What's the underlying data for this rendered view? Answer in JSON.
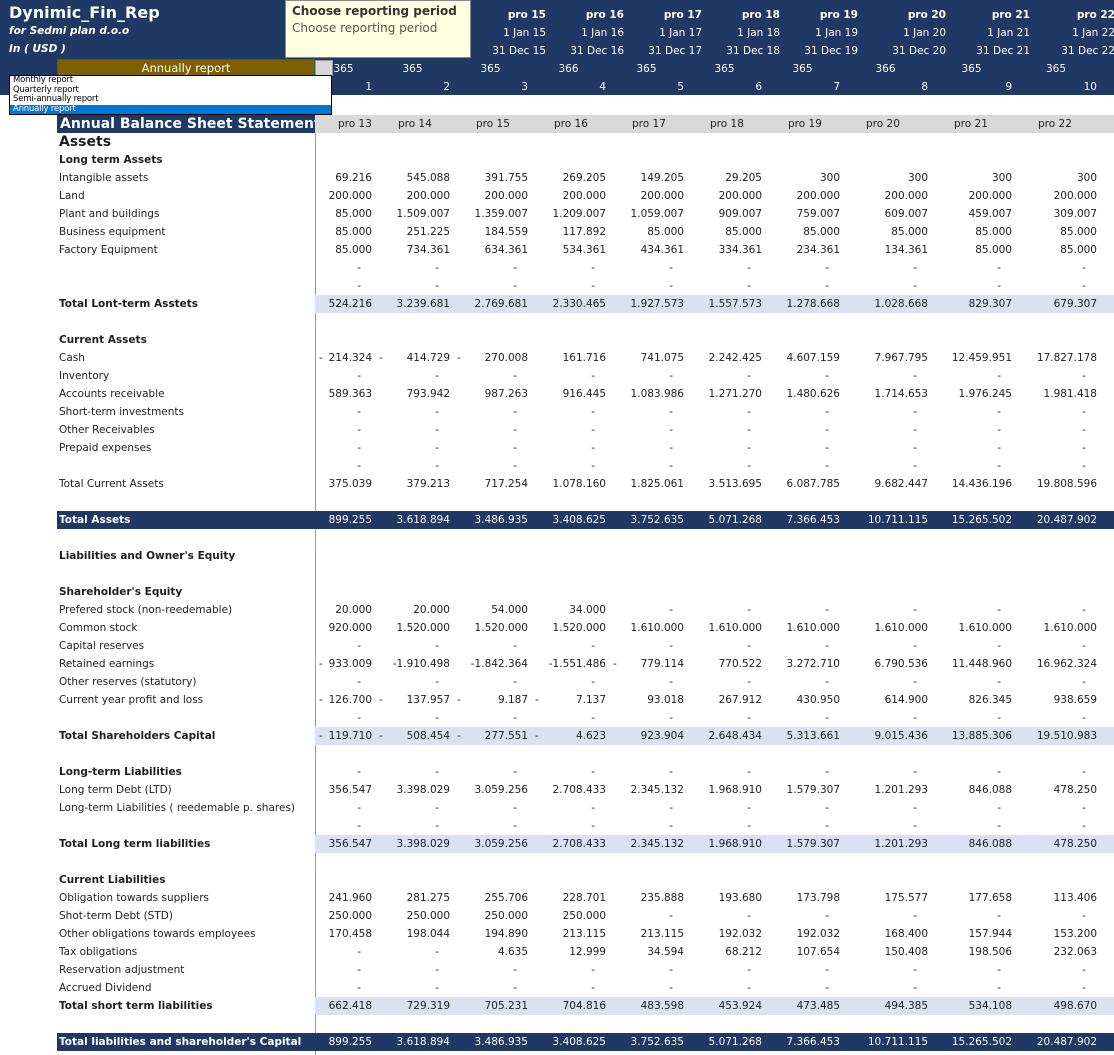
{
  "header": {
    "title": "Dynimic_Fin_Rep",
    "company": "for Sedmi plan d.o.o",
    "currency": "In ( USD )",
    "periods": [
      "pro 13",
      "pro 14",
      "pro 15",
      "pro 16",
      "pro 17",
      "pro 18",
      "pro 19",
      "pro 20",
      "pro 21",
      "pro 22"
    ],
    "start_dates": [
      "",
      "",
      "1 Jan 15",
      "1 Jan 16",
      "1 Jan 17",
      "1 Jan 18",
      "1 Jan 19",
      "1 Jan 20",
      "1 Jan 21",
      "1 Jan 22"
    ],
    "end_dates": [
      "",
      "",
      "31 Dec 15",
      "31 Dec 16",
      "31 Dec 17",
      "31 Dec 18",
      "31 Dec 19",
      "31 Dec 20",
      "31 Dec 21",
      "31 Dec 22"
    ],
    "days": [
      "365",
      "365",
      "365",
      "366",
      "365",
      "365",
      "365",
      "366",
      "365",
      "365"
    ],
    "index": [
      "1",
      "2",
      "3",
      "4",
      "5",
      "6",
      "7",
      "8",
      "9",
      "10"
    ]
  },
  "tooltip": {
    "title": "Choose reporting period",
    "body": "Choose reporting period"
  },
  "dropdown": {
    "selected": "Annually report",
    "options": [
      "Monthly report",
      "Quarterly report",
      "Semi-annually report",
      "Annually report"
    ],
    "selected_index": 3
  },
  "colors": {
    "navy": "#203864",
    "dropdown": "#7f6000",
    "total_band": "#d9e1f2",
    "column_header": "#d9d9d9",
    "selection": "#0078d7"
  },
  "table": {
    "rows": [
      {
        "type": "title",
        "label": "Annual Balance Sheet Statement",
        "values": [
          "pro 13",
          "pro 14",
          "pro 15",
          "pro 16",
          "pro 17",
          "pro 18",
          "pro 19",
          "pro 20",
          "pro 21",
          "pro 22"
        ]
      },
      {
        "type": "assets",
        "label": "Assets",
        "values": []
      },
      {
        "type": "heading",
        "label": "Long term Assets",
        "values": []
      },
      {
        "type": "item",
        "label": "Intangible assets",
        "values": [
          "69.216",
          "545.088",
          "391.755",
          "269.205",
          "149.205",
          "29.205",
          "300",
          "300",
          "300",
          "300"
        ]
      },
      {
        "type": "item",
        "label": "Land",
        "values": [
          "200.000",
          "200.000",
          "200.000",
          "200.000",
          "200.000",
          "200.000",
          "200.000",
          "200.000",
          "200.000",
          "200.000"
        ]
      },
      {
        "type": "item",
        "label": "Plant and buildings",
        "values": [
          "85.000",
          "1.509.007",
          "1.359.007",
          "1.209.007",
          "1.059.007",
          "909.007",
          "759.007",
          "609.007",
          "459.007",
          "309.007"
        ]
      },
      {
        "type": "item",
        "label": "Business equipment",
        "values": [
          "85.000",
          "251.225",
          "184.559",
          "117.892",
          "85.000",
          "85.000",
          "85.000",
          "85.000",
          "85.000",
          "85.000"
        ]
      },
      {
        "type": "item",
        "label": "Factory Equipment",
        "values": [
          "85.000",
          "734.361",
          "634.361",
          "534.361",
          "434.361",
          "334.361",
          "234.361",
          "134.361",
          "85.000",
          "85.000"
        ]
      },
      {
        "type": "item",
        "label": "",
        "values": [
          "-",
          "-",
          "-",
          "-",
          "-",
          "-",
          "-",
          "-",
          "-",
          "-"
        ]
      },
      {
        "type": "item",
        "label": "",
        "values": [
          "-",
          "-",
          "-",
          "-",
          "-",
          "-",
          "-",
          "-",
          "-",
          "-"
        ]
      },
      {
        "type": "total",
        "label": "Total Lont-term Asstets",
        "values": [
          "524.216",
          "3.239.681",
          "2.769.681",
          "2.330.465",
          "1.927.573",
          "1.557.573",
          "1.278.668",
          "1.028.668",
          "829.307",
          "679.307"
        ]
      },
      {
        "type": "blank",
        "label": "",
        "values": []
      },
      {
        "type": "heading",
        "label": "Current Assets",
        "values": []
      },
      {
        "type": "item",
        "label": "Cash",
        "values": [
          "- 214.324",
          "- 414.729",
          "- 270.008",
          "161.716",
          "741.075",
          "2.242.425",
          "4.607.159",
          "7.967.795",
          "12.459.951",
          "17.827.178"
        ]
      },
      {
        "type": "item",
        "label": "Inventory",
        "values": [
          "-",
          "-",
          "-",
          "-",
          "-",
          "-",
          "-",
          "-",
          "-",
          "-"
        ]
      },
      {
        "type": "item",
        "label": "Accounts receivable",
        "values": [
          "589.363",
          "793.942",
          "987.263",
          "916.445",
          "1.083.986",
          "1.271.270",
          "1.480.626",
          "1.714.653",
          "1.976.245",
          "1.981.418"
        ]
      },
      {
        "type": "item",
        "label": "Short-term investments",
        "values": [
          "-",
          "-",
          "-",
          "-",
          "-",
          "-",
          "-",
          "-",
          "-",
          "-"
        ]
      },
      {
        "type": "item",
        "label": "Other Receivables",
        "values": [
          "-",
          "-",
          "-",
          "-",
          "-",
          "-",
          "-",
          "-",
          "-",
          "-"
        ]
      },
      {
        "type": "item",
        "label": "Prepaid expenses",
        "values": [
          "-",
          "-",
          "-",
          "-",
          "-",
          "-",
          "-",
          "-",
          "-",
          "-"
        ]
      },
      {
        "type": "item",
        "label": "",
        "values": [
          "-",
          "-",
          "-",
          "-",
          "-",
          "-",
          "-",
          "-",
          "-",
          "-"
        ]
      },
      {
        "type": "item",
        "label": "Total Current Assets",
        "values": [
          "375.039",
          "379.213",
          "717.254",
          "1.078.160",
          "1.825.061",
          "3.513.695",
          "6.087.785",
          "9.682.447",
          "14.436.196",
          "19.808.596"
        ]
      },
      {
        "type": "blank",
        "label": "",
        "values": []
      },
      {
        "type": "grand",
        "label": "Total Assets",
        "values": [
          "899.255",
          "3.618.894",
          "3.486.935",
          "3.408.625",
          "3.752.635",
          "5.071.268",
          "7.366.453",
          "10.711.115",
          "15.265.502",
          "20.487.902"
        ]
      },
      {
        "type": "blank",
        "label": "",
        "values": []
      },
      {
        "type": "heading",
        "label": "Liabilities and Owner's Equity",
        "values": []
      },
      {
        "type": "blank",
        "label": "",
        "values": []
      },
      {
        "type": "heading",
        "label": "Shareholder's Equity",
        "values": []
      },
      {
        "type": "item",
        "label": "Prefered stock  (non-reedemable)",
        "values": [
          "20.000",
          "20.000",
          "54.000",
          "34.000",
          "-",
          "-",
          "-",
          "-",
          "-",
          "-"
        ]
      },
      {
        "type": "item",
        "label": "Common stock",
        "values": [
          "920.000",
          "1.520.000",
          "1.520.000",
          "1.520.000",
          "1.610.000",
          "1.610.000",
          "1.610.000",
          "1.610.000",
          "1.610.000",
          "1.610.000"
        ]
      },
      {
        "type": "item",
        "label": "Capital reserves",
        "values": [
          "-",
          "-",
          "-",
          "-",
          "-",
          "-",
          "-",
          "-",
          "-",
          "-"
        ]
      },
      {
        "type": "item",
        "label": "Retained earnings",
        "values": [
          "- 933.009",
          "-1.910.498",
          "-1.842.364",
          "-1.551.486",
          "- 779.114",
          "770.522",
          "3.272.710",
          "6.790.536",
          "11.448.960",
          "16.962.324"
        ]
      },
      {
        "type": "item",
        "label": "Other reserves (statutory)",
        "values": [
          "-",
          "-",
          "-",
          "-",
          "-",
          "-",
          "-",
          "-",
          "-",
          "-"
        ]
      },
      {
        "type": "item",
        "label": "Current year profit and loss",
        "values": [
          "- 126.700",
          "- 137.957",
          "- 9.187",
          "- 7.137",
          "93.018",
          "267.912",
          "430.950",
          "614.900",
          "826.345",
          "938.659"
        ]
      },
      {
        "type": "item",
        "label": "",
        "values": [
          "-",
          "-",
          "-",
          "-",
          "-",
          "-",
          "-",
          "-",
          "-",
          "-"
        ]
      },
      {
        "type": "total",
        "label": "Total Shareholders Capital",
        "values": [
          "- 119.710",
          "- 508.454",
          "- 277.551",
          "- 4.623",
          "923.904",
          "2.648.434",
          "5.313.661",
          "9.015.436",
          "13.885.306",
          "19.510.983"
        ]
      },
      {
        "type": "blank",
        "label": "",
        "values": []
      },
      {
        "type": "heading",
        "label": "Long-term Liabilities",
        "values": [
          "-",
          "-",
          "-",
          "-",
          "-",
          "-",
          "-",
          "-",
          "-",
          "-"
        ]
      },
      {
        "type": "item",
        "label": "Long term Debt (LTD)",
        "values": [
          "356.547",
          "3.398.029",
          "3.059.256",
          "2.708.433",
          "2.345.132",
          "1.968.910",
          "1.579.307",
          "1.201.293",
          "846.088",
          "478.250"
        ]
      },
      {
        "type": "item",
        "label": "Long-term Liabilities ( reedemable p. shares)",
        "values": [
          "-",
          "-",
          "-",
          "-",
          "-",
          "-",
          "-",
          "-",
          "-",
          "-"
        ]
      },
      {
        "type": "item",
        "label": "",
        "values": [
          "-",
          "-",
          "-",
          "-",
          "-",
          "-",
          "-",
          "-",
          "-",
          "-"
        ]
      },
      {
        "type": "total",
        "label": "Total Long term liabilities",
        "values": [
          "356.547",
          "3.398.029",
          "3.059.256",
          "2.708.433",
          "2.345.132",
          "1.968.910",
          "1.579.307",
          "1.201.293",
          "846.088",
          "478.250"
        ]
      },
      {
        "type": "blank",
        "label": "",
        "values": []
      },
      {
        "type": "heading",
        "label": "Current Liabilities",
        "values": []
      },
      {
        "type": "item",
        "label": "Obligation towards suppliers",
        "values": [
          "241.960",
          "281.275",
          "255.706",
          "228.701",
          "235.888",
          "193.680",
          "173.798",
          "175.577",
          "177.658",
          "113.406"
        ]
      },
      {
        "type": "item",
        "label": "Shot-term Debt (STD)",
        "values": [
          "250.000",
          "250.000",
          "250.000",
          "250.000",
          "-",
          "-",
          "-",
          "-",
          "-",
          "-"
        ]
      },
      {
        "type": "item",
        "label": "Other obligations towards employees",
        "values": [
          "170.458",
          "198.044",
          "194.890",
          "213.115",
          "213.115",
          "192.032",
          "192.032",
          "168.400",
          "157.944",
          "153.200"
        ]
      },
      {
        "type": "item",
        "label": "Tax obligations",
        "values": [
          "-",
          "-",
          "4.635",
          "12.999",
          "34.594",
          "68.212",
          "107.654",
          "150.408",
          "198.506",
          "232.063"
        ]
      },
      {
        "type": "item",
        "label": "Reservation adjustment",
        "values": [
          "-",
          "-",
          "-",
          "-",
          "-",
          "-",
          "-",
          "-",
          "-",
          "-"
        ]
      },
      {
        "type": "item",
        "label": "Accrued Dividend",
        "values": [
          "-",
          "-",
          "-",
          "-",
          "-",
          "-",
          "-",
          "-",
          "-",
          "-"
        ]
      },
      {
        "type": "total-light",
        "label": "Total short term liabilities",
        "values": [
          "662.418",
          "729.319",
          "705.231",
          "704.816",
          "483.598",
          "453.924",
          "473.485",
          "494.385",
          "534.108",
          "498.670"
        ]
      },
      {
        "type": "blank",
        "label": "",
        "values": []
      },
      {
        "type": "grand",
        "label": "Total liabilities and shareholder's Capital",
        "values": [
          "899.255",
          "3.618.894",
          "3.486.935",
          "3.408.625",
          "3.752.635",
          "5.071.268",
          "7.366.453",
          "10.711.115",
          "15.265.502",
          "20.487.902"
        ]
      }
    ]
  }
}
